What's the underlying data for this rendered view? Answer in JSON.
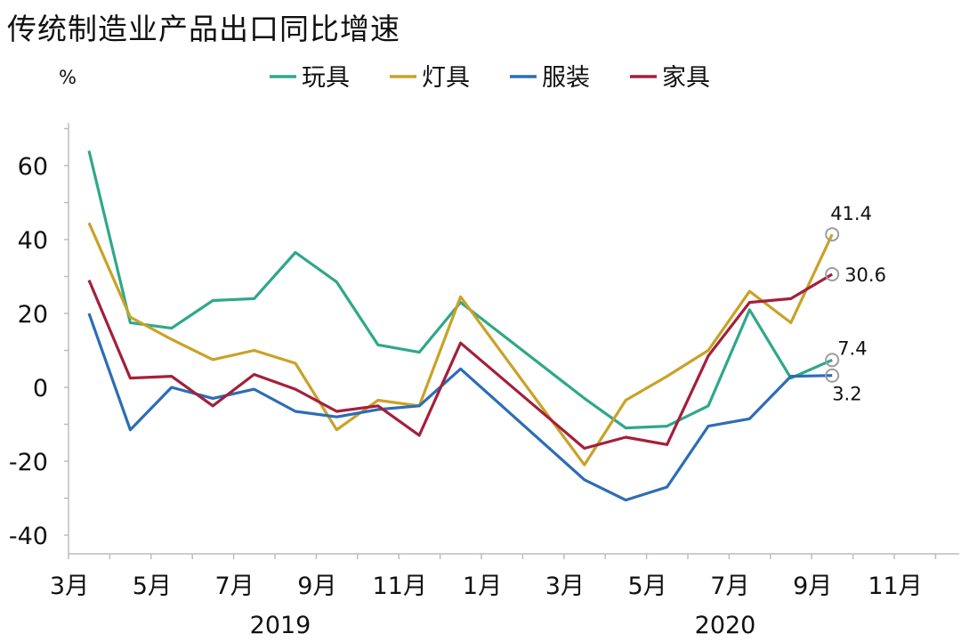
{
  "title": "传统制造业产品出口同比增速",
  "chart_data": {
    "type": "line",
    "title": "传统制造业产品出口同比增速",
    "unit": "%",
    "ylim": [
      -45,
      72
    ],
    "y_ticks": [
      60,
      40,
      20,
      0,
      -20,
      -40
    ],
    "y_tick_labels": [
      "60",
      "40",
      "20",
      "0",
      "-20",
      "-40"
    ],
    "x_tick_labels": [
      "3月",
      "5月",
      "7月",
      "9月",
      "11月",
      "1月",
      "3月",
      "5月",
      "7月",
      "9月",
      "11月"
    ],
    "year_labels": [
      "2019",
      "2020"
    ],
    "x": [
      "2019-03",
      "2019-04",
      "2019-05",
      "2019-06",
      "2019-07",
      "2019-08",
      "2019-09",
      "2019-10",
      "2019-11",
      "2019-12",
      "2020-03",
      "2020-04",
      "2020-05",
      "2020-06",
      "2020-07",
      "2020-08",
      "2020-09"
    ],
    "legend_position": "top",
    "grid": false,
    "series": [
      {
        "name": "玩具",
        "color": "#2ea88a",
        "values": [
          64,
          17.5,
          16,
          23.5,
          24,
          36.5,
          28.5,
          11.5,
          9.5,
          23,
          -3,
          -11,
          -10.5,
          -5,
          21,
          2.5,
          7.4
        ]
      },
      {
        "name": "灯具",
        "color": "#c9a227",
        "values": [
          44.5,
          19,
          13,
          7.5,
          10,
          6.5,
          -11.5,
          -3.5,
          -5,
          24.5,
          -21,
          -3.5,
          3,
          10,
          26,
          17.5,
          41.4
        ]
      },
      {
        "name": "服装",
        "color": "#2c6db5",
        "values": [
          20,
          -11.5,
          0,
          -3,
          -0.5,
          -6.5,
          -8,
          -6,
          -5,
          5,
          -25,
          -30.5,
          -27,
          -10.5,
          -8.5,
          3,
          3.2
        ]
      },
      {
        "name": "家具",
        "color": "#a3203b",
        "values": [
          29,
          2.5,
          3,
          -5,
          3.5,
          -0.5,
          -6.5,
          -5,
          -13,
          12,
          -16.5,
          -13.5,
          -15.5,
          8.5,
          23,
          24,
          30.6
        ]
      }
    ],
    "annotations": [
      {
        "series": "灯具",
        "label": "41.4",
        "value": 41.4
      },
      {
        "series": "家具",
        "label": "30.6",
        "value": 30.6
      },
      {
        "series": "玩具",
        "label": "7.4",
        "value": 7.4
      },
      {
        "series": "服装",
        "label": "3.2",
        "value": 3.2
      }
    ]
  }
}
